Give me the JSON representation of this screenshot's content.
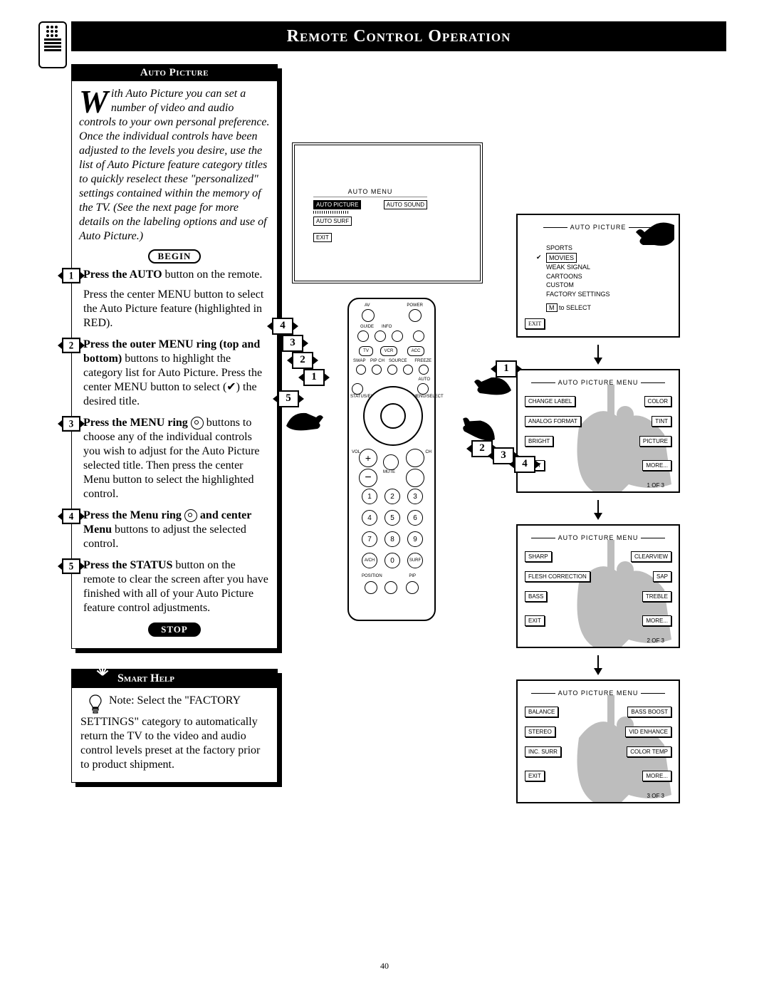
{
  "page_number": "40",
  "header": {
    "title": "Remote Control Operation"
  },
  "auto_picture_box": {
    "heading": "Auto Picture",
    "intro_dropcap": "W",
    "intro_rest": "ith Auto Picture you can set a number of video and audio controls to your own personal preference. Once the individual controls have been adjusted to the levels you desire, use the list of Auto Picture feature category titles to quickly reselect these \"personalized\" settings contained within the memory of the TV. (See the next page for more details on the labeling options and use of Auto Picture.)",
    "begin_label": "BEGIN",
    "stop_label": "STOP",
    "steps": [
      {
        "n": "1",
        "lead": "Press the AUTO",
        "rest": " button on the remote.",
        "extra": "Press the center MENU button to select the Auto Picture feature (highlighted in RED)."
      },
      {
        "n": "2",
        "lead": "Press the outer MENU ring (top and bottom)",
        "rest": " buttons to highlight the category list for Auto Picture. Press the center MENU button to select (✔) the desired title."
      },
      {
        "n": "3",
        "lead": "Press the MENU ring ",
        "ring": true,
        "rest": " buttons to choose any of the individual controls you wish to adjust for the Auto Picture selected title. Then press the center Menu button to select the highlighted control."
      },
      {
        "n": "4",
        "lead": "Press the Menu ring ",
        "ring": true,
        "rest": " and center Menu",
        "rest2": " buttons to adjust the selected control."
      },
      {
        "n": "5",
        "lead": "Press the STATUS",
        "rest": " button on the remote to clear the screen after you have finished with all of your Auto Picture feature control adjustments."
      }
    ]
  },
  "smart_help": {
    "heading": "Smart Help",
    "body_lead": "Note: Select the ",
    "body_quote": "\"FACTORY SETTINGS\"",
    "body_rest": " category to automatically return the TV to the video and audio control levels preset at the factory prior to product shipment."
  },
  "tv_screen": {
    "menu_title": "AUTO MENU",
    "left": [
      "AUTO PICTURE",
      "AUTO SURF",
      "EXIT"
    ],
    "right": [
      "AUTO SOUND"
    ]
  },
  "panel1": {
    "title": "AUTO PICTURE",
    "items": [
      "SPORTS",
      "MOVIES",
      "WEAK SIGNAL",
      "CARTOONS",
      "CUSTOM",
      "FACTORY SETTINGS"
    ],
    "selected": "MOVIES",
    "hint_key": "M",
    "hint_rest": " to SELECT",
    "exit": "EXIT"
  },
  "panel2": {
    "title": "AUTO PICTURE MENU",
    "buttons_left": [
      "CHANGE LABEL",
      "ANALOG FORMAT",
      "BRIGHT",
      "EXIT"
    ],
    "buttons_right": [
      "COLOR",
      "TINT",
      "PICTURE",
      "MORE..."
    ],
    "counter": "1 OF 3"
  },
  "panel3": {
    "title": "AUTO PICTURE MENU",
    "buttons_left": [
      "SHARP",
      "FLESH CORRECTION",
      "BASS",
      "EXIT"
    ],
    "buttons_right": [
      "CLEARVIEW",
      "SAP",
      "TREBLE",
      "MORE..."
    ],
    "counter": "2 OF 3"
  },
  "panel4": {
    "title": "AUTO PICTURE MENU",
    "buttons_left": [
      "BALANCE",
      "STEREO",
      "INC. SURR",
      "EXIT"
    ],
    "buttons_right": [
      "BASS BOOST",
      "VID ENHANCE",
      "COLOR TEMP",
      "MORE..."
    ],
    "counter": "3 OF 3"
  },
  "remote_labels": {
    "av": "AV",
    "power": "POWER",
    "guide": "GUIDE",
    "info": "INFO",
    "tv": "TV",
    "vcr": "VCR",
    "acc": "ACC",
    "swap": "SWAP",
    "pipch": "PIP CH",
    "source": "SOURCE",
    "freeze": "FREEZE",
    "auto": "AUTO",
    "status": "STATUS/EXIT",
    "menu": "MENU/SELECT",
    "vol": "VOL",
    "ch": "CH",
    "mute": "MUTE",
    "position": "POSITION",
    "pip": "PIP"
  },
  "colors": {
    "black": "#000000",
    "white": "#ffffff",
    "silhouette": "#bdbdbd"
  }
}
